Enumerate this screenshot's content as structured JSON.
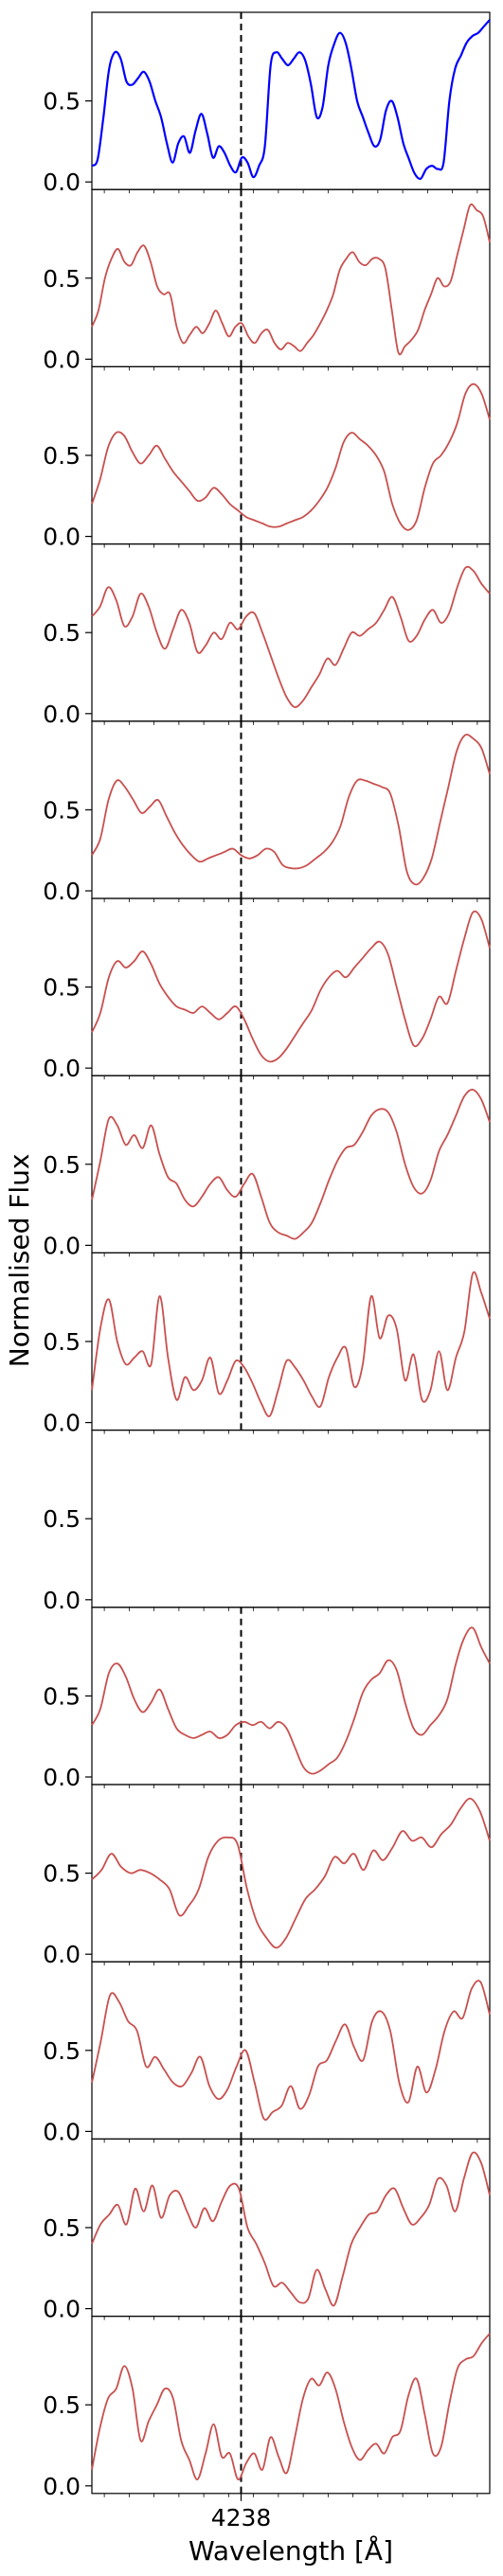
{
  "chart_data": {
    "type": "line",
    "xlabel": "Wavelength [Å]",
    "ylabel": "Normalised Flux",
    "x_ticks": [
      4238
    ],
    "y_ticks": [
      0.0,
      0.5
    ],
    "y_tick_labels": [
      "0.0",
      "0.5"
    ],
    "x_tick_labels": [
      "4238"
    ],
    "xlim": [
      4236.8,
      4240.0
    ],
    "ylim": [
      0.0,
      1.0
    ],
    "marker_line_x": 4238,
    "colors": {
      "reference": "#0000ff",
      "spectra": "#c8504f",
      "marker": "#000000"
    },
    "panels": [
      {
        "color": "reference",
        "y": [
          0.1,
          0.14,
          0.4,
          0.7,
          0.8,
          0.76,
          0.62,
          0.6,
          0.64,
          0.68,
          0.62,
          0.5,
          0.4,
          0.24,
          0.12,
          0.24,
          0.28,
          0.18,
          0.32,
          0.42,
          0.3,
          0.15,
          0.22,
          0.18,
          0.1,
          0.06,
          0.15,
          0.12,
          0.03,
          0.1,
          0.22,
          0.72,
          0.8,
          0.76,
          0.72,
          0.76,
          0.8,
          0.75,
          0.6,
          0.4,
          0.46,
          0.72,
          0.85,
          0.92,
          0.86,
          0.7,
          0.5,
          0.4,
          0.3,
          0.22,
          0.26,
          0.44,
          0.5,
          0.4,
          0.24,
          0.14,
          0.05,
          0.02,
          0.08,
          0.1,
          0.08,
          0.12,
          0.5,
          0.7,
          0.78,
          0.86,
          0.9,
          0.92,
          0.96,
          1.0
        ]
      },
      {
        "color": "spectra",
        "y": [
          0.2,
          0.3,
          0.5,
          0.62,
          0.68,
          0.6,
          0.58,
          0.66,
          0.7,
          0.6,
          0.45,
          0.4,
          0.4,
          0.2,
          0.1,
          0.15,
          0.2,
          0.16,
          0.22,
          0.3,
          0.22,
          0.14,
          0.2,
          0.22,
          0.14,
          0.1,
          0.16,
          0.18,
          0.1,
          0.06,
          0.1,
          0.08,
          0.05,
          0.1,
          0.15,
          0.22,
          0.3,
          0.4,
          0.55,
          0.62,
          0.66,
          0.6,
          0.58,
          0.62,
          0.62,
          0.56,
          0.3,
          0.04,
          0.08,
          0.12,
          0.18,
          0.3,
          0.4,
          0.5,
          0.45,
          0.48,
          0.64,
          0.8,
          0.95,
          0.92,
          0.88,
          0.72
        ]
      },
      {
        "color": "spectra",
        "y": [
          0.2,
          0.35,
          0.55,
          0.64,
          0.62,
          0.52,
          0.45,
          0.5,
          0.56,
          0.48,
          0.4,
          0.34,
          0.28,
          0.22,
          0.24,
          0.3,
          0.26,
          0.2,
          0.16,
          0.12,
          0.1,
          0.08,
          0.06,
          0.06,
          0.08,
          0.1,
          0.12,
          0.16,
          0.22,
          0.3,
          0.42,
          0.58,
          0.64,
          0.6,
          0.56,
          0.5,
          0.4,
          0.2,
          0.08,
          0.04,
          0.1,
          0.3,
          0.45,
          0.5,
          0.58,
          0.7,
          0.88,
          0.94,
          0.88,
          0.72
        ]
      },
      {
        "color": "spectra",
        "y": [
          0.6,
          0.66,
          0.78,
          0.7,
          0.54,
          0.6,
          0.74,
          0.66,
          0.5,
          0.4,
          0.52,
          0.64,
          0.56,
          0.38,
          0.42,
          0.5,
          0.46,
          0.56,
          0.52,
          0.6,
          0.62,
          0.5,
          0.36,
          0.22,
          0.1,
          0.04,
          0.08,
          0.16,
          0.24,
          0.34,
          0.3,
          0.4,
          0.5,
          0.48,
          0.52,
          0.56,
          0.64,
          0.72,
          0.6,
          0.45,
          0.48,
          0.58,
          0.64,
          0.56,
          0.62,
          0.78,
          0.9,
          0.88,
          0.8,
          0.74
        ]
      },
      {
        "color": "spectra",
        "y": [
          0.22,
          0.32,
          0.56,
          0.68,
          0.64,
          0.56,
          0.48,
          0.52,
          0.56,
          0.46,
          0.36,
          0.28,
          0.22,
          0.18,
          0.2,
          0.22,
          0.24,
          0.26,
          0.22,
          0.2,
          0.22,
          0.26,
          0.24,
          0.16,
          0.14,
          0.14,
          0.16,
          0.2,
          0.24,
          0.3,
          0.4,
          0.58,
          0.68,
          0.68,
          0.66,
          0.64,
          0.6,
          0.4,
          0.12,
          0.04,
          0.08,
          0.2,
          0.42,
          0.64,
          0.86,
          0.96,
          0.94,
          0.88,
          0.72
        ]
      },
      {
        "color": "spectra",
        "y": [
          0.22,
          0.34,
          0.56,
          0.66,
          0.62,
          0.66,
          0.72,
          0.64,
          0.52,
          0.44,
          0.38,
          0.36,
          0.34,
          0.38,
          0.34,
          0.3,
          0.34,
          0.38,
          0.3,
          0.18,
          0.08,
          0.04,
          0.06,
          0.12,
          0.2,
          0.28,
          0.36,
          0.48,
          0.56,
          0.6,
          0.56,
          0.62,
          0.68,
          0.74,
          0.78,
          0.7,
          0.5,
          0.3,
          0.14,
          0.18,
          0.3,
          0.44,
          0.4,
          0.6,
          0.8,
          0.96,
          0.92,
          0.74
        ]
      },
      {
        "color": "spectra",
        "y": [
          0.28,
          0.52,
          0.78,
          0.74,
          0.62,
          0.68,
          0.6,
          0.74,
          0.56,
          0.42,
          0.38,
          0.28,
          0.24,
          0.3,
          0.38,
          0.42,
          0.34,
          0.3,
          0.38,
          0.44,
          0.3,
          0.14,
          0.08,
          0.06,
          0.04,
          0.08,
          0.14,
          0.26,
          0.4,
          0.52,
          0.6,
          0.62,
          0.7,
          0.8,
          0.84,
          0.82,
          0.7,
          0.5,
          0.36,
          0.32,
          0.4,
          0.58,
          0.68,
          0.8,
          0.92,
          0.96,
          0.9,
          0.76
        ]
      },
      {
        "color": "spectra",
        "y": [
          0.2,
          0.58,
          0.76,
          0.5,
          0.36,
          0.4,
          0.44,
          0.36,
          0.78,
          0.4,
          0.14,
          0.28,
          0.2,
          0.26,
          0.4,
          0.18,
          0.26,
          0.38,
          0.34,
          0.24,
          0.12,
          0.04,
          0.2,
          0.38,
          0.34,
          0.26,
          0.16,
          0.1,
          0.28,
          0.4,
          0.46,
          0.22,
          0.36,
          0.78,
          0.52,
          0.66,
          0.58,
          0.26,
          0.42,
          0.14,
          0.2,
          0.44,
          0.2,
          0.4,
          0.56,
          0.92,
          0.8,
          0.64
        ]
      },
      {
        "color": "spectra",
        "y": []
      },
      {
        "color": "spectra",
        "y": [
          0.32,
          0.42,
          0.64,
          0.7,
          0.62,
          0.48,
          0.4,
          0.46,
          0.54,
          0.42,
          0.3,
          0.26,
          0.24,
          0.26,
          0.28,
          0.24,
          0.26,
          0.32,
          0.34,
          0.32,
          0.34,
          0.3,
          0.34,
          0.3,
          0.18,
          0.06,
          0.02,
          0.04,
          0.08,
          0.12,
          0.22,
          0.36,
          0.52,
          0.6,
          0.64,
          0.72,
          0.66,
          0.46,
          0.3,
          0.26,
          0.32,
          0.38,
          0.48,
          0.7,
          0.86,
          0.92,
          0.8,
          0.7
        ]
      },
      {
        "color": "spectra",
        "y": [
          0.46,
          0.52,
          0.62,
          0.54,
          0.5,
          0.52,
          0.5,
          0.46,
          0.4,
          0.24,
          0.3,
          0.4,
          0.6,
          0.7,
          0.72,
          0.68,
          0.4,
          0.2,
          0.1,
          0.04,
          0.1,
          0.22,
          0.34,
          0.4,
          0.48,
          0.6,
          0.56,
          0.62,
          0.52,
          0.64,
          0.58,
          0.66,
          0.76,
          0.7,
          0.72,
          0.66,
          0.74,
          0.8,
          0.9,
          0.96,
          0.88,
          0.7
        ]
      },
      {
        "color": "spectra",
        "y": [
          0.3,
          0.56,
          0.84,
          0.8,
          0.68,
          0.62,
          0.4,
          0.46,
          0.38,
          0.3,
          0.28,
          0.36,
          0.46,
          0.28,
          0.2,
          0.26,
          0.4,
          0.5,
          0.3,
          0.08,
          0.12,
          0.16,
          0.28,
          0.14,
          0.22,
          0.4,
          0.44,
          0.56,
          0.66,
          0.52,
          0.44,
          0.68,
          0.74,
          0.62,
          0.3,
          0.18,
          0.4,
          0.24,
          0.38,
          0.62,
          0.74,
          0.7,
          0.88,
          0.92,
          0.72
        ]
      },
      {
        "color": "spectra",
        "y": [
          0.4,
          0.52,
          0.58,
          0.64,
          0.52,
          0.74,
          0.6,
          0.76,
          0.56,
          0.7,
          0.72,
          0.6,
          0.5,
          0.62,
          0.54,
          0.66,
          0.76,
          0.74,
          0.5,
          0.4,
          0.28,
          0.14,
          0.16,
          0.1,
          0.04,
          0.06,
          0.24,
          0.12,
          0.02,
          0.2,
          0.4,
          0.5,
          0.58,
          0.6,
          0.7,
          0.74,
          0.62,
          0.52,
          0.56,
          0.64,
          0.8,
          0.76,
          0.6,
          0.8,
          0.96,
          0.9,
          0.7
        ]
      },
      {
        "color": "spectra",
        "y": [
          0.1,
          0.36,
          0.54,
          0.6,
          0.74,
          0.6,
          0.28,
          0.4,
          0.5,
          0.6,
          0.54,
          0.28,
          0.16,
          0.04,
          0.2,
          0.38,
          0.18,
          0.2,
          0.04,
          0.14,
          0.2,
          0.1,
          0.3,
          0.18,
          0.08,
          0.3,
          0.54,
          0.66,
          0.62,
          0.7,
          0.6,
          0.4,
          0.24,
          0.16,
          0.22,
          0.26,
          0.2,
          0.3,
          0.34,
          0.56,
          0.66,
          0.44,
          0.2,
          0.24,
          0.5,
          0.72,
          0.78,
          0.8,
          0.88,
          0.94
        ]
      }
    ]
  }
}
